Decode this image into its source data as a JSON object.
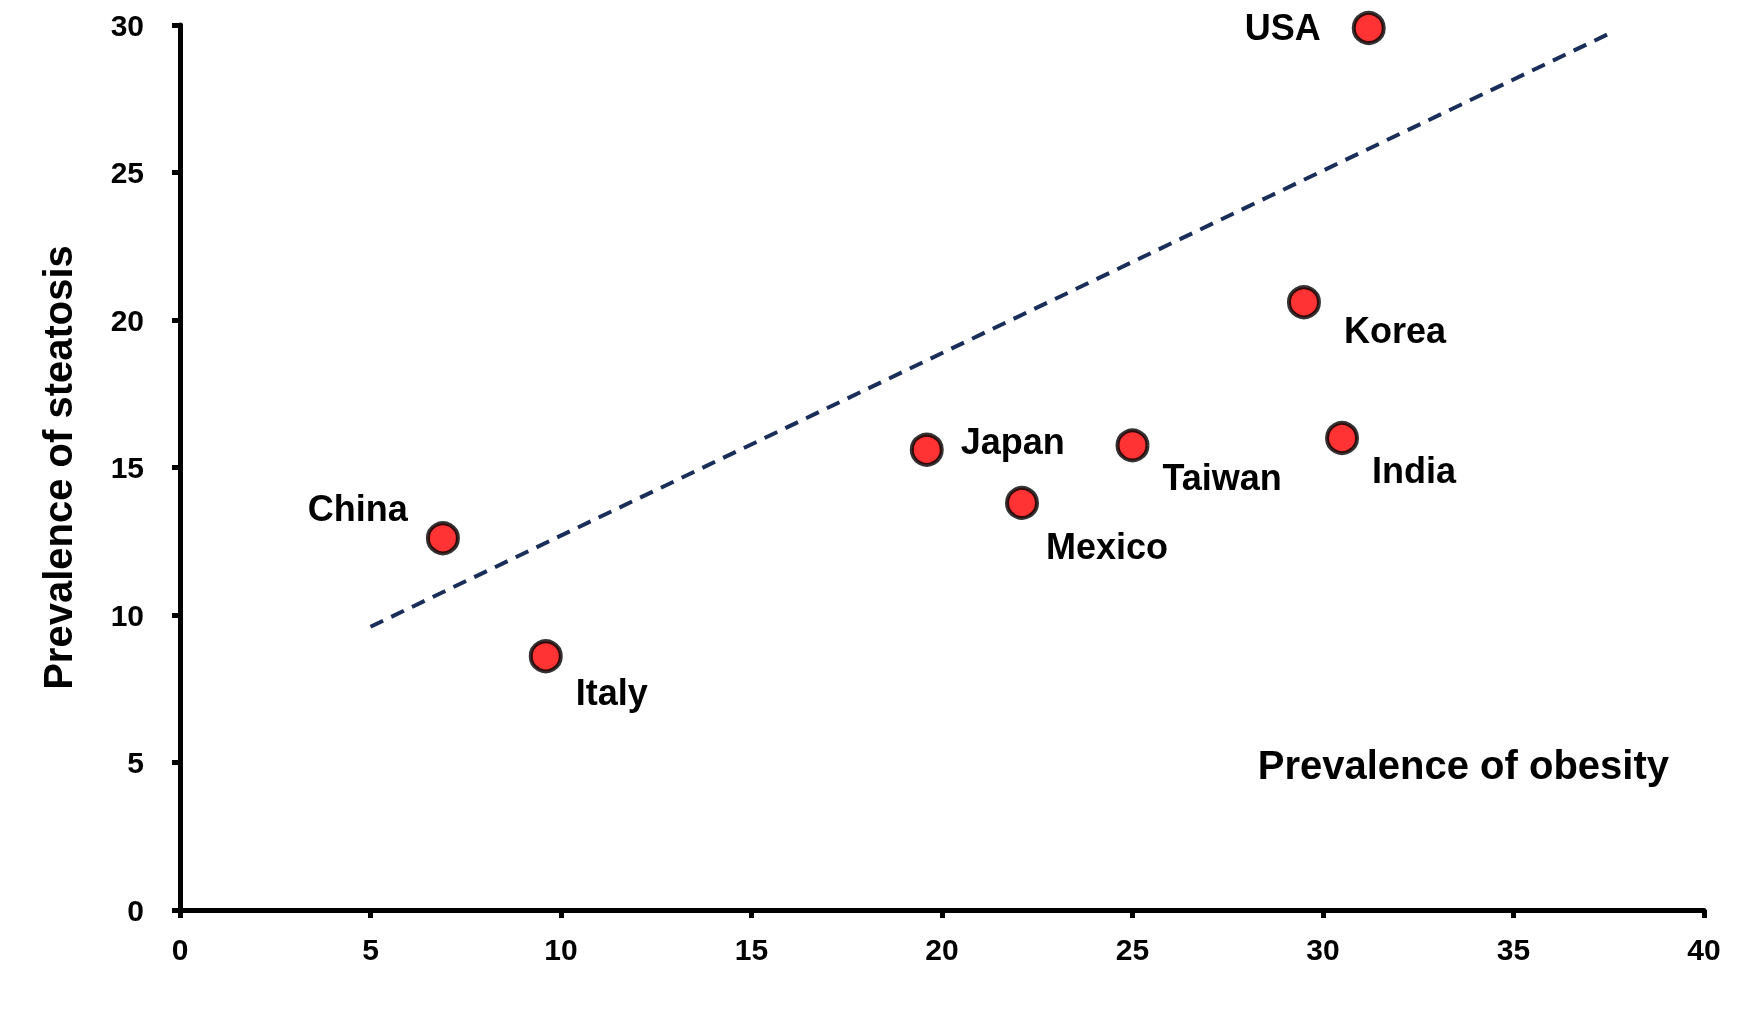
{
  "chart_data": {
    "type": "scatter",
    "xlabel": "Prevalence of obesity",
    "ylabel": "Prevalence of steatosis",
    "xlim": [
      0,
      40
    ],
    "xticks": [
      0,
      5,
      10,
      15,
      20,
      25,
      30,
      35,
      40
    ],
    "ylim": [
      0,
      30
    ],
    "yticks": [
      0,
      5,
      10,
      15,
      20,
      25,
      30
    ],
    "grid": false,
    "marker": "circle",
    "series": [
      {
        "color": "#ff0000",
        "x": [
          31.2,
          29.5,
          30.5,
          25.0,
          19.6,
          22.1,
          6.9,
          9.6
        ],
        "values": [
          29.9,
          20.6,
          16.0,
          15.75,
          15.6,
          13.8,
          12.6,
          8.6
        ]
      },
      {
        "type": "line",
        "color": "#1a2e5a",
        "line_style": "dashed",
        "marker": "none",
        "x": [
          5,
          37.5
        ],
        "values": [
          9.6,
          29.7
        ]
      }
    ],
    "annotations": [
      {
        "text": "USA",
        "x": 31.2,
        "y": 29.9
      },
      {
        "text": "Korea",
        "x": 29.5,
        "y": 20.6
      },
      {
        "text": "India",
        "x": 30.5,
        "y": 16.0
      },
      {
        "text": "Taiwan",
        "x": 25.0,
        "y": 15.75
      },
      {
        "text": "Japan",
        "x": 19.6,
        "y": 15.6
      },
      {
        "text": "Mexico",
        "x": 22.1,
        "y": 13.8
      },
      {
        "text": "China",
        "x": 6.9,
        "y": 12.6
      },
      {
        "text": "Italy",
        "x": 9.6,
        "y": 8.6
      }
    ]
  }
}
